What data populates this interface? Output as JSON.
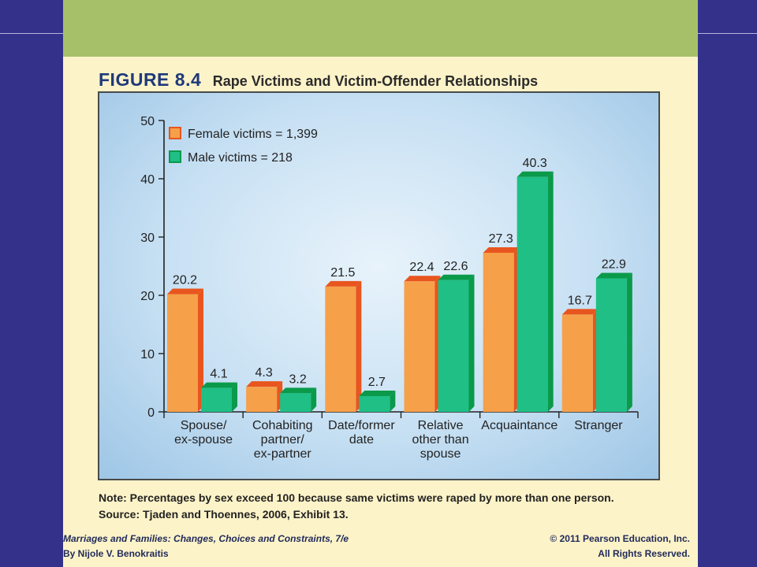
{
  "figure": {
    "label": "FIGURE 8.4",
    "title": "Rape Victims and Victim-Offender Relationships"
  },
  "note": "Note: Percentages by sex exceed 100 because same victims were raped by more than one person.",
  "source": "Source: Tjaden and Thoennes, 2006, Exhibit 13.",
  "footer": {
    "book_title": "Marriages and Families: Changes, Choices and Constraints, 7/e",
    "author": "By Nijole V. Benokraitis",
    "copyright": "© 2011 Pearson Education, Inc.",
    "rights": "All Rights Reserved."
  },
  "colors": {
    "female": "#f6a04a",
    "female_side": "#e8551e",
    "male": "#1fbf86",
    "male_side": "#0a9a4a",
    "background": "#33318a",
    "panel": "#fdf3c8",
    "panel_top": "#a6c06a"
  },
  "chart_data": {
    "type": "bar",
    "title": "Rape Victims and Victim-Offender Relationships",
    "categories": [
      [
        "Spouse/",
        "ex-spouse"
      ],
      [
        "Cohabiting",
        "partner/",
        "ex-partner"
      ],
      [
        "Date/former",
        "date"
      ],
      [
        "Relative",
        "other than",
        "spouse"
      ],
      [
        "Acquaintance"
      ],
      [
        "Stranger"
      ]
    ],
    "series": [
      {
        "name": "Female victims = 1,399",
        "values": [
          20.2,
          4.3,
          21.5,
          22.4,
          27.3,
          16.7
        ]
      },
      {
        "name": "Male victims = 218",
        "values": [
          4.1,
          3.2,
          2.7,
          22.6,
          40.3,
          22.9
        ]
      }
    ],
    "ylim": [
      0,
      50
    ],
    "yticks": [
      0,
      10,
      20,
      30,
      40,
      50
    ],
    "legend": "top-left",
    "grid": false
  }
}
